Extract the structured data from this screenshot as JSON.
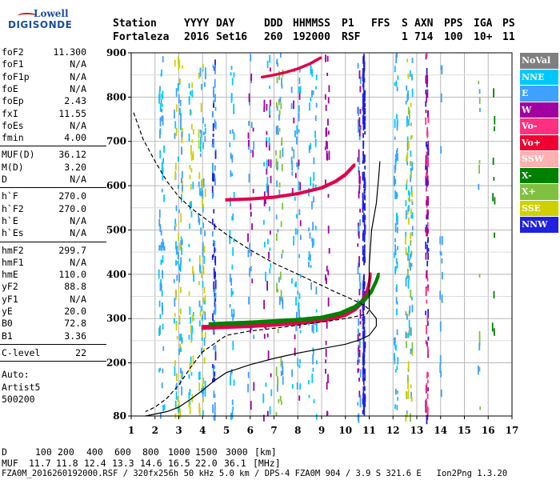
{
  "logo": {
    "line1": "Lowell",
    "line2": "DIGISONDE"
  },
  "header": {
    "labels": [
      "Station",
      "YYYY",
      "DAY",
      "DDD",
      "HHMMSS",
      "P1",
      "FFS",
      "S",
      "AXN",
      "PPS",
      "IGA",
      "PS"
    ],
    "values": [
      "Fortaleza",
      "2016",
      "Set16",
      "260",
      "192000",
      "RSF",
      "1",
      "714",
      "100",
      "10+",
      "11"
    ]
  },
  "params": {
    "group1": [
      {
        "label": "foF2",
        "value": "11.300"
      },
      {
        "label": "foF1",
        "value": "N/A"
      },
      {
        "label": "foF1p",
        "value": "N/A"
      },
      {
        "label": "foE",
        "value": "N/A"
      },
      {
        "label": "foEp",
        "value": "2.43"
      },
      {
        "label": "fxI",
        "value": "11.55"
      },
      {
        "label": "foEs",
        "value": "N/A"
      },
      {
        "label": "fmin",
        "value": "4.00"
      }
    ],
    "group2": [
      {
        "label": "MUF(D)",
        "value": "36.12"
      },
      {
        "label": "M(D)",
        "value": "3.20"
      },
      {
        "label": "D",
        "value": "N/A"
      }
    ],
    "group3": [
      {
        "label": "h`F",
        "value": "270.0"
      },
      {
        "label": "h`F2",
        "value": "270.0"
      },
      {
        "label": "h`E",
        "value": "N/A"
      },
      {
        "label": "h`Es",
        "value": "N/A"
      }
    ],
    "group4": [
      {
        "label": "hmF2",
        "value": "299.7"
      },
      {
        "label": "hmF1",
        "value": "N/A"
      },
      {
        "label": "hmE",
        "value": "110.0"
      },
      {
        "label": "yF2",
        "value": "88.8"
      },
      {
        "label": "yF1",
        "value": "N/A"
      },
      {
        "label": "yE",
        "value": "20.0"
      },
      {
        "label": "B0",
        "value": "72.8"
      },
      {
        "label": "B1",
        "value": "3.36"
      }
    ],
    "group5": [
      {
        "label": "C-level",
        "value": "22"
      }
    ],
    "autoscale": [
      "Auto:",
      "Artist5",
      "500200"
    ]
  },
  "legend": [
    {
      "label": "NoVal",
      "bg": "#7f7f7f",
      "fg": "#ffffff"
    },
    {
      "label": "NNE",
      "bg": "#00c8ff",
      "fg": "#ffffff"
    },
    {
      "label": "E",
      "bg": "#40a0ff",
      "fg": "#ffffff"
    },
    {
      "label": "W",
      "bg": "#a000a0",
      "fg": "#ffffff"
    },
    {
      "label": "Vo-",
      "bg": "#ff3080",
      "fg": "#ffffff"
    },
    {
      "label": "Vo+",
      "bg": "#f00030",
      "fg": "#ffffff"
    },
    {
      "label": "SSW",
      "bg": "#ffb0b0",
      "fg": "#ffffff"
    },
    {
      "label": "X-",
      "bg": "#008000",
      "fg": "#ffffff"
    },
    {
      "label": "X+",
      "bg": "#80c040",
      "fg": "#ffffff"
    },
    {
      "label": "SSE",
      "bg": "#d0d000",
      "fg": "#ffffff"
    },
    {
      "label": "NNW",
      "bg": "#2020e0",
      "fg": "#ffffff"
    }
  ],
  "mufrow": {
    "d_label": "D",
    "d_values": [
      "100",
      "200",
      "400",
      "600",
      "800",
      "1000",
      "1500",
      "3000"
    ],
    "d_unit": "[km]",
    "muf_label": "MUF",
    "muf_values": [
      "11.7",
      "11.8",
      "12.4",
      "13.3",
      "14.6",
      "16.5",
      "22.0",
      "36.1"
    ],
    "muf_unit": "[MHz]"
  },
  "footer": "FZA0M_2016260192000.RSF / 320fx256h 50 kHz 5.0 km / DPS-4 FZA0M 904 / 3.9 S 321.6 E   Ion2Png 1.3.20",
  "chart_data": {
    "type": "scatter",
    "title": "",
    "xlabel": "",
    "ylabel": "",
    "xlim": [
      1,
      17
    ],
    "ylim": [
      80,
      900
    ],
    "xticks": [
      1,
      2,
      3,
      4,
      5,
      6,
      7,
      8,
      9,
      10,
      11,
      12,
      13,
      14,
      15,
      16,
      17
    ],
    "yticks": [
      80,
      200,
      300,
      400,
      500,
      600,
      700,
      800,
      900
    ],
    "grid": true,
    "ordinary_trace": {
      "color": "#e0004a",
      "points": [
        [
          4.0,
          280
        ],
        [
          5.0,
          282
        ],
        [
          6.0,
          284
        ],
        [
          7.0,
          287
        ],
        [
          8.0,
          291
        ],
        [
          9.0,
          297
        ],
        [
          9.6,
          303
        ],
        [
          10.0,
          310
        ],
        [
          10.4,
          322
        ],
        [
          10.7,
          338
        ],
        [
          10.9,
          358
        ],
        [
          11.0,
          380
        ],
        [
          11.05,
          400
        ]
      ]
    },
    "extraordinary_trace": {
      "color": "#008000",
      "points": [
        [
          4.3,
          287
        ],
        [
          5.0,
          289
        ],
        [
          6.0,
          291
        ],
        [
          7.0,
          294
        ],
        [
          8.0,
          297
        ],
        [
          9.0,
          302
        ],
        [
          9.8,
          312
        ],
        [
          10.4,
          326
        ],
        [
          10.8,
          342
        ],
        [
          11.1,
          362
        ],
        [
          11.3,
          385
        ],
        [
          11.4,
          400
        ]
      ]
    },
    "second_hop_trace": {
      "color": "#e0004a",
      "points": [
        [
          5.0,
          568
        ],
        [
          6.0,
          570
        ],
        [
          7.0,
          574
        ],
        [
          8.0,
          582
        ],
        [
          9.0,
          595
        ],
        [
          9.6,
          610
        ],
        [
          10.0,
          625
        ],
        [
          10.4,
          648
        ]
      ]
    },
    "multi_hop_trace": {
      "color": "#e0004a",
      "points": [
        [
          6.5,
          845
        ],
        [
          7.0,
          850
        ],
        [
          7.5,
          856
        ],
        [
          8.0,
          864
        ],
        [
          8.5,
          875
        ],
        [
          9.0,
          890
        ]
      ]
    },
    "profile_curve": {
      "color": "#000000",
      "points": [
        [
          1.6,
          80
        ],
        [
          2.5,
          90
        ],
        [
          3.0,
          100
        ],
        [
          3.5,
          118
        ],
        [
          4.0,
          138
        ],
        [
          4.5,
          160
        ],
        [
          5.0,
          178
        ],
        [
          6.0,
          196
        ],
        [
          7.0,
          210
        ],
        [
          8.0,
          222
        ],
        [
          9.0,
          232
        ],
        [
          10.0,
          242
        ],
        [
          10.6,
          252
        ],
        [
          11.0,
          262
        ],
        [
          11.3,
          283
        ],
        [
          11.3,
          300
        ],
        [
          11.0,
          320
        ],
        [
          11.0,
          420
        ],
        [
          11.1,
          500
        ],
        [
          11.3,
          560
        ],
        [
          11.4,
          620
        ],
        [
          11.45,
          655
        ]
      ]
    },
    "muf_dashed_curve": {
      "color": "#000000",
      "points": [
        [
          1.1,
          765
        ],
        [
          1.5,
          705
        ],
        [
          2.0,
          655
        ],
        [
          2.5,
          610
        ],
        [
          3.0,
          575
        ],
        [
          3.5,
          550
        ],
        [
          4.0,
          530
        ],
        [
          5.0,
          490
        ],
        [
          6.0,
          455
        ],
        [
          7.0,
          425
        ],
        [
          8.0,
          400
        ],
        [
          9.0,
          375
        ],
        [
          9.5,
          362
        ],
        [
          10.0,
          350
        ],
        [
          10.5,
          338
        ],
        [
          10.8,
          330
        ],
        [
          11.0,
          320
        ],
        [
          10.9,
          310
        ],
        [
          10.0,
          300
        ],
        [
          9.0,
          292
        ],
        [
          8.0,
          285
        ],
        [
          7.0,
          278
        ],
        [
          6.0,
          272
        ],
        [
          5.0,
          262
        ],
        [
          4.0,
          225
        ],
        [
          3.5,
          190
        ],
        [
          3.0,
          150
        ],
        [
          2.5,
          120
        ],
        [
          2.0,
          100
        ],
        [
          1.6,
          90
        ]
      ]
    }
  }
}
